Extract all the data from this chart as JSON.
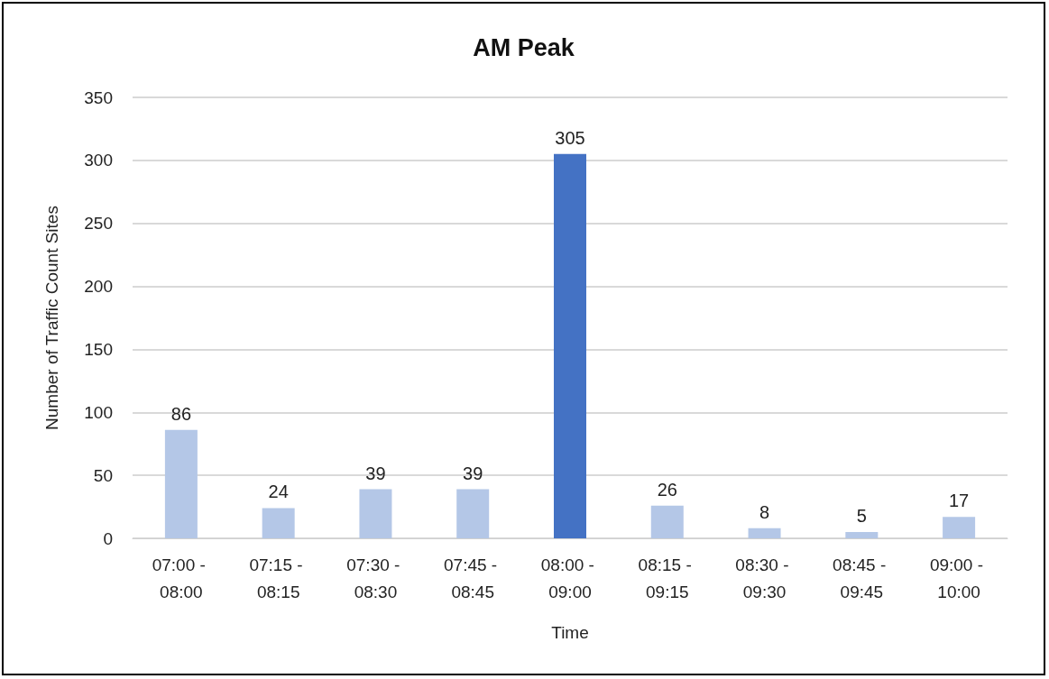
{
  "chart_data": {
    "type": "bar",
    "title": "AM Peak",
    "xlabel": "Time",
    "ylabel": "Number of Traffic Count Sites",
    "categories": [
      "07:00 - 08:00",
      "07:15 - 08:15",
      "07:30 - 08:30",
      "07:45 - 08:45",
      "08:00 - 09:00",
      "08:15 - 09:15",
      "08:30 - 09:30",
      "08:45 - 09:45",
      "09:00 - 10:00"
    ],
    "values": [
      86,
      24,
      39,
      39,
      305,
      26,
      8,
      5,
      17
    ],
    "colors": [
      "#b4c7e7",
      "#b4c7e7",
      "#b4c7e7",
      "#b4c7e7",
      "#4472c4",
      "#b4c7e7",
      "#b4c7e7",
      "#b4c7e7",
      "#b4c7e7"
    ],
    "ylim": [
      0,
      350
    ],
    "yticks": [
      0,
      50,
      100,
      150,
      200,
      250,
      300,
      350
    ],
    "grid": "y",
    "data_labels": true
  }
}
